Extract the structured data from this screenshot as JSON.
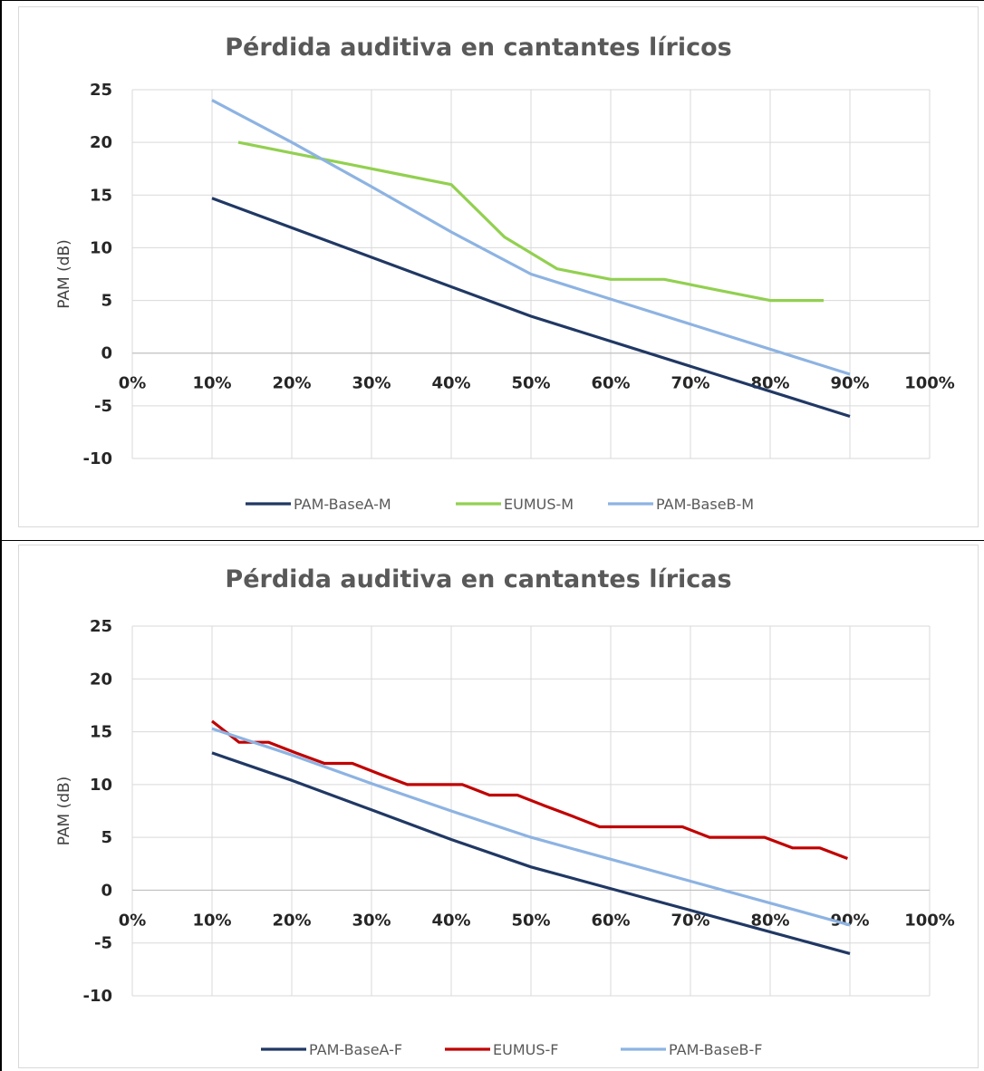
{
  "chart_data": [
    {
      "type": "line",
      "title": "Pérdida auditiva en cantantes líricos",
      "xlabel": "",
      "ylabel": "PAM (dB)",
      "xlim": [
        0,
        100
      ],
      "ylim": [
        -10,
        25
      ],
      "x_ticks": [
        "0%",
        "10%",
        "20%",
        "30%",
        "40%",
        "50%",
        "60%",
        "70%",
        "80%",
        "90%",
        "100%"
      ],
      "y_ticks": [
        "25",
        "20",
        "15",
        "10",
        "5",
        "0",
        "-5",
        "-10"
      ],
      "grid": true,
      "legend_position": "bottom",
      "series": [
        {
          "name": "PAM-BaseA-M",
          "color": "#203864",
          "x": [
            10,
            50,
            90
          ],
          "y": [
            14.7,
            3.5,
            -6
          ]
        },
        {
          "name": "EUMUS-M",
          "color": "#92d050",
          "x": [
            13.3,
            20,
            26.7,
            33.3,
            40,
            46.7,
            53.3,
            60,
            66.7,
            73.3,
            80,
            86.7
          ],
          "y": [
            20,
            19,
            18,
            17,
            16,
            11,
            8,
            7,
            7,
            6,
            5,
            5
          ]
        },
        {
          "name": "PAM-BaseB-M",
          "color": "#8db3e2",
          "x": [
            10,
            20,
            30,
            40,
            50,
            90
          ],
          "y": [
            24,
            20,
            15.8,
            11.5,
            7.5,
            -2
          ]
        }
      ]
    },
    {
      "type": "line",
      "title": "Pérdida auditiva en cantantes líricas",
      "xlabel": "",
      "ylabel": "PAM (dB)",
      "xlim": [
        0,
        100
      ],
      "ylim": [
        -10,
        25
      ],
      "x_ticks": [
        "0%",
        "10%",
        "20%",
        "30%",
        "40%",
        "50%",
        "60%",
        "70%",
        "80%",
        "90%",
        "100%"
      ],
      "y_ticks": [
        "25",
        "20",
        "15",
        "10",
        "5",
        "0",
        "-5",
        "-10"
      ],
      "grid": true,
      "legend_position": "bottom",
      "series": [
        {
          "name": "PAM-BaseA-F",
          "color": "#203864",
          "x": [
            10,
            20,
            30,
            40,
            50,
            90
          ],
          "y": [
            13,
            10.4,
            7.6,
            4.8,
            2.2,
            -6
          ]
        },
        {
          "name": "EUMUS-F",
          "color": "#c00000",
          "x": [
            10,
            13.4,
            17.1,
            20.5,
            24.1,
            27.6,
            31,
            34.5,
            37.9,
            41.4,
            44.8,
            48.3,
            51.7,
            55.2,
            58.6,
            62.1,
            65.5,
            69,
            72.4,
            75.9,
            79.3,
            82.8,
            86.2,
            89.7
          ],
          "y": [
            16,
            14,
            14,
            13,
            12,
            12,
            11,
            10,
            10,
            10,
            9,
            9,
            8,
            7,
            6,
            6,
            6,
            6,
            5,
            5,
            5,
            4,
            4,
            3
          ]
        },
        {
          "name": "PAM-BaseB-F",
          "color": "#8db3e2",
          "x": [
            10,
            20,
            30,
            40,
            50,
            90
          ],
          "y": [
            15.3,
            12.8,
            10.1,
            7.5,
            5,
            -3.3
          ]
        }
      ]
    }
  ]
}
